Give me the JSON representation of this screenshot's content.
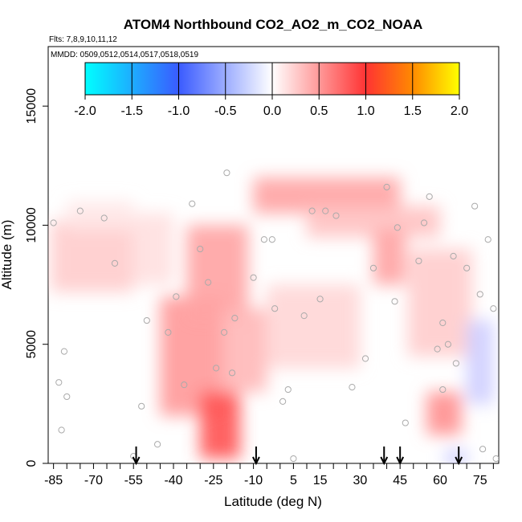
{
  "chart_data": {
    "type": "heatmap",
    "title": "ATOM4 Northbound CO2_AO2_m_CO2_NOAA",
    "flights_label": "Flts: 7,8,9,10,11,12",
    "dates_label": "MMDD: 0509,0512,0514,0517,0518,0519",
    "xlabel": "Latitude (deg N)",
    "ylabel": "Altitude (m)",
    "xlim": [
      -87,
      82
    ],
    "ylim": [
      0,
      17500
    ],
    "xticks": [
      -85,
      -70,
      -55,
      -40,
      -25,
      -10,
      5,
      15,
      30,
      45,
      60,
      75
    ],
    "xtick_labels": [
      "-85",
      "-70",
      "-55",
      "-40",
      "-25",
      "-10",
      "5",
      "15",
      "30",
      "45",
      "60",
      "75"
    ],
    "yticks": [
      0,
      5000,
      10000,
      15000
    ],
    "ytick_labels": [
      "0",
      "5000",
      "10000",
      "15000"
    ],
    "colorbar": {
      "min": -2.0,
      "max": 2.0,
      "ticks": [
        "-2.0",
        "-1.5",
        "-1.0",
        "-0.5",
        "0.0",
        "0.5",
        "1.0",
        "1.5",
        "2.0"
      ],
      "colors": [
        "#00ffff",
        "#3a6bff",
        "#ffffff",
        "#ff3333",
        "#ff8800",
        "#ffff00"
      ]
    },
    "arrows_latitude": [
      -54,
      -9,
      39,
      45,
      67
    ],
    "regions": [
      {
        "x": [
          -86,
          -55
        ],
        "y": [
          7200,
          10200
        ],
        "value": 0.25
      },
      {
        "x": [
          -80,
          -55
        ],
        "y": [
          9800,
          11000
        ],
        "value": 0.12
      },
      {
        "x": [
          -55,
          -40
        ],
        "y": [
          7500,
          10500
        ],
        "value": 0.15
      },
      {
        "x": [
          -45,
          -20
        ],
        "y": [
          2000,
          7000
        ],
        "value": 0.5
      },
      {
        "x": [
          -35,
          -12
        ],
        "y": [
          6000,
          10000
        ],
        "value": 0.45
      },
      {
        "x": [
          -30,
          -15
        ],
        "y": [
          200,
          3000
        ],
        "value": 0.85
      },
      {
        "x": [
          -22,
          -5
        ],
        "y": [
          3000,
          6500
        ],
        "value": 0.35
      },
      {
        "x": [
          -10,
          45
        ],
        "y": [
          10500,
          12000
        ],
        "value": 0.45
      },
      {
        "x": [
          10,
          60
        ],
        "y": [
          9500,
          10800
        ],
        "value": 0.3
      },
      {
        "x": [
          35,
          47
        ],
        "y": [
          7500,
          9800
        ],
        "value": 0.45
      },
      {
        "x": [
          48,
          72
        ],
        "y": [
          4500,
          9000
        ],
        "value": 0.25
      },
      {
        "x": [
          -5,
          30
        ],
        "y": [
          4000,
          7500
        ],
        "value": 0.2
      },
      {
        "x": [
          55,
          68
        ],
        "y": [
          1200,
          3000
        ],
        "value": 0.55
      },
      {
        "x": [
          70,
          80
        ],
        "y": [
          2500,
          6000
        ],
        "value": -0.3
      },
      {
        "x": [
          62,
          70
        ],
        "y": [
          0,
          500
        ],
        "value": -0.4
      }
    ],
    "sample_points": [
      [
        -85,
        10100
      ],
      [
        -81,
        4700
      ],
      [
        -83,
        3400
      ],
      [
        -80,
        2800
      ],
      [
        -82,
        1400
      ],
      [
        -75,
        10600
      ],
      [
        -66,
        10300
      ],
      [
        -62,
        8400
      ],
      [
        -55,
        300
      ],
      [
        -52,
        2400
      ],
      [
        -50,
        6000
      ],
      [
        -46,
        800
      ],
      [
        -42,
        5500
      ],
      [
        -39,
        7000
      ],
      [
        -36,
        3300
      ],
      [
        -33,
        10900
      ],
      [
        -30,
        9000
      ],
      [
        -27,
        7600
      ],
      [
        -24,
        4000
      ],
      [
        -21,
        5500
      ],
      [
        -20,
        12200
      ],
      [
        -18,
        3800
      ],
      [
        -17,
        6100
      ],
      [
        -10,
        7800
      ],
      [
        -6,
        9400
      ],
      [
        -3,
        9400
      ],
      [
        -2,
        6500
      ],
      [
        1,
        2600
      ],
      [
        3,
        3100
      ],
      [
        5,
        200
      ],
      [
        9,
        6200
      ],
      [
        12,
        10600
      ],
      [
        15,
        6900
      ],
      [
        17,
        10600
      ],
      [
        21,
        10400
      ],
      [
        27,
        3200
      ],
      [
        32,
        4400
      ],
      [
        35,
        8200
      ],
      [
        40,
        11600
      ],
      [
        43,
        6800
      ],
      [
        44,
        9900
      ],
      [
        47,
        1700
      ],
      [
        52,
        8500
      ],
      [
        54,
        10100
      ],
      [
        56,
        11200
      ],
      [
        59,
        4800
      ],
      [
        61,
        5900
      ],
      [
        61,
        3100
      ],
      [
        63,
        5000
      ],
      [
        65,
        8700
      ],
      [
        66,
        4200
      ],
      [
        70,
        8200
      ],
      [
        73,
        10800
      ],
      [
        75,
        7100
      ],
      [
        76,
        600
      ],
      [
        78,
        9400
      ],
      [
        80,
        6500
      ],
      [
        81,
        200
      ]
    ]
  }
}
